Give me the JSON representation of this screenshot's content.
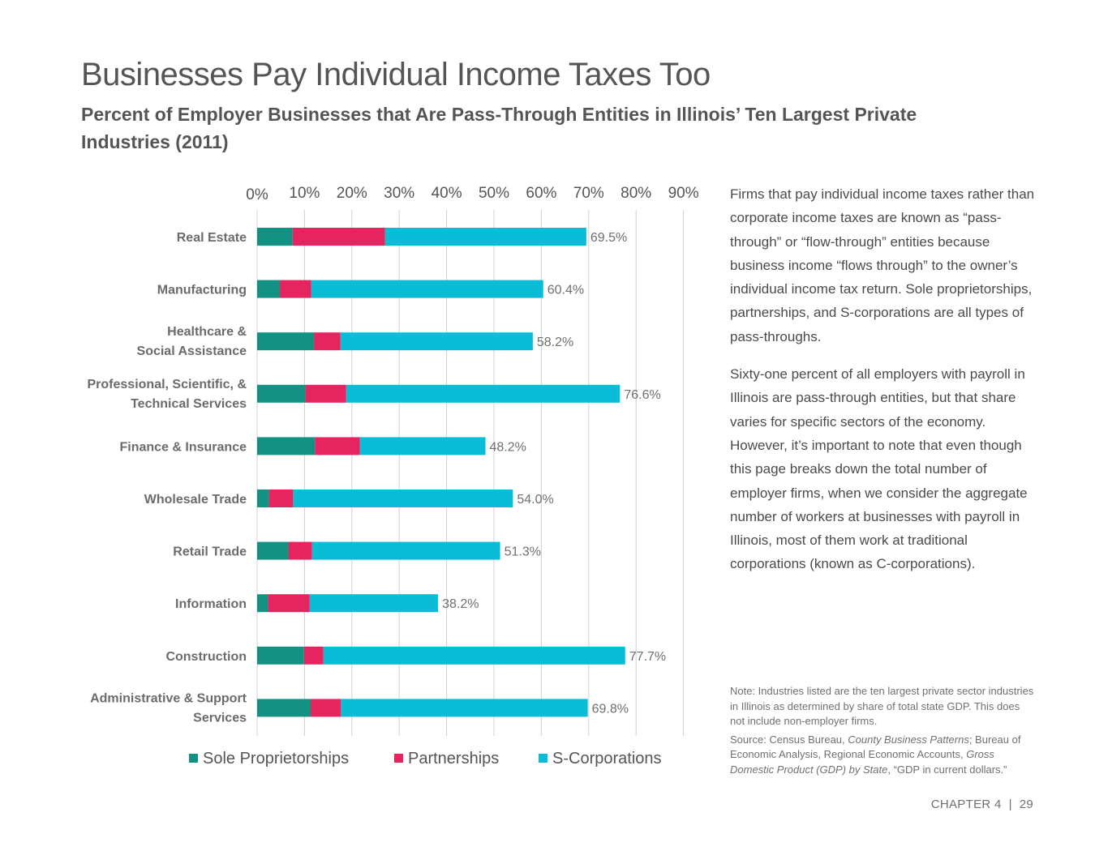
{
  "header": {
    "title": "Businesses Pay Individual Income Taxes Too",
    "subtitle": "Percent of Employer Businesses that Are Pass-Through Entities in Illinois’ Ten Largest Private Industries (2011)"
  },
  "colors": {
    "sole": "#139283",
    "partnership": "#e6245f",
    "scorp": "#0bbcd6",
    "grid": "#d0d0d0",
    "label": "#6b6b6b"
  },
  "chart_data": {
    "type": "bar",
    "orientation": "horizontal",
    "stacked": true,
    "title": "Percent of Employer Businesses that Are Pass-Through Entities in Illinois’ Ten Largest Private Industries (2011)",
    "xlim": [
      0,
      90
    ],
    "x_ticks": [
      "0%",
      "10%",
      "20%",
      "30%",
      "40%",
      "50%",
      "60%",
      "70%",
      "80%",
      "90%"
    ],
    "grid": true,
    "legend_position": "bottom",
    "categories": [
      [
        "Real Estate"
      ],
      [
        "Manufacturing"
      ],
      [
        "Healthcare &",
        "Social Assistance"
      ],
      [
        "Professional, Scientific, &",
        "Technical Services"
      ],
      [
        "Finance & Insurance"
      ],
      [
        "Wholesale Trade"
      ],
      [
        "Retail Trade"
      ],
      [
        "Information"
      ],
      [
        "Construction"
      ],
      [
        "Administrative & Support",
        "Services"
      ]
    ],
    "series": [
      {
        "name": "Sole Proprietorships",
        "color": "#139283",
        "values": [
          7.5,
          4.8,
          12.0,
          10.2,
          12.2,
          2.5,
          6.6,
          2.3,
          9.9,
          11.3
        ]
      },
      {
        "name": "Partnerships",
        "color": "#e6245f",
        "values": [
          19.5,
          6.6,
          5.6,
          8.6,
          9.5,
          5.1,
          5.0,
          8.8,
          4.1,
          6.4
        ]
      },
      {
        "name": "S-Corporations",
        "color": "#0bbcd6",
        "values": [
          42.5,
          49.0,
          40.6,
          57.8,
          26.5,
          46.4,
          39.7,
          27.1,
          63.7,
          52.1
        ]
      }
    ],
    "totals": [
      "69.5%",
      "60.4%",
      "58.2%",
      "76.6%",
      "48.2%",
      "54.0%",
      "51.3%",
      "38.2%",
      "77.7%",
      "69.8%"
    ]
  },
  "sidebar": {
    "paragraphs": [
      "Firms that pay individual income taxes rather than corporate income taxes are known as “pass-through” or “flow-through” entities because business income “flows through” to the owner’s individual income tax return. Sole proprietorships, partnerships, and S-corporations are all types of pass-throughs.",
      "Sixty-one percent of all employers with payroll in Illinois are pass-through entities, but that share varies for specific sectors of the economy. However, it’s important to note that even though this page breaks down the total number of employer firms, when we consider the aggregate number of workers at businesses with payroll in Illinois, most of them work at traditional corporations (known as C-corporations)."
    ]
  },
  "note": {
    "text": "Note: Industries listed are the ten largest private sector industries in Illinois as determined by share of total state GDP. This does not include non-employer firms.",
    "source_prefix": "Source: Census Bureau, ",
    "source_title_1": "County Business Patterns",
    "source_mid": "; Bureau of Economic Analysis, Regional Economic Accounts, ",
    "source_title_2": "Gross Domestic Product (GDP) by State",
    "source_suffix": ", “GDP in current dollars.”"
  },
  "footer": {
    "chapter": "CHAPTER 4",
    "separator": "|",
    "page": "29"
  }
}
